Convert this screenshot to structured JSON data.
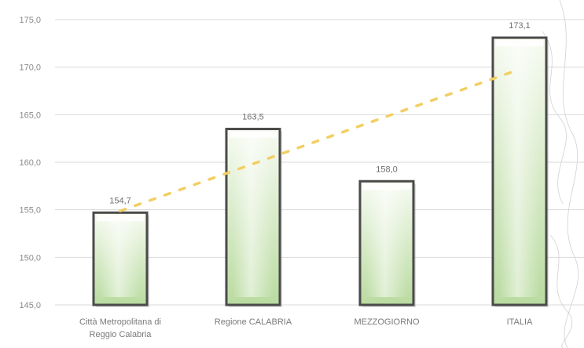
{
  "chart_data": {
    "type": "bar",
    "categories": [
      [
        "Città Metropolitana di",
        "Reggio Calabria"
      ],
      [
        "Regione CALABRIA"
      ],
      [
        "MEZZOGIORNO"
      ],
      [
        "ITALIA"
      ]
    ],
    "values": [
      154.7,
      163.5,
      158.0,
      173.1
    ],
    "value_labels": [
      "154,7",
      "163,5",
      "158,0",
      "173,1"
    ],
    "ylim": [
      145,
      175
    ],
    "yticks": [
      145,
      150,
      155,
      160,
      165,
      170,
      175
    ],
    "ytick_labels": [
      "145,0",
      "150,0",
      "155,0",
      "160,0",
      "165,0",
      "170,0",
      "175,0"
    ],
    "grid": true,
    "trendline": {
      "style": "dotted",
      "type": "linear"
    },
    "colors": {
      "bar_top": "#f7fbf2",
      "bar_bottom": "#b9dba0",
      "bar_edge": "#4a4a4a",
      "grid": "#d9d9d9",
      "trend": "#f2cf63"
    }
  }
}
